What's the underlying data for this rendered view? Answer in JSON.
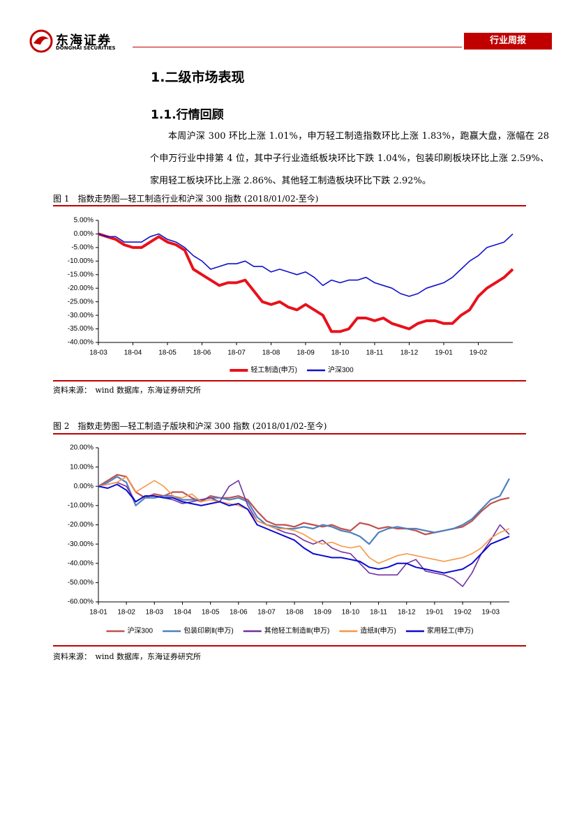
{
  "header": {
    "brand": "东海证券",
    "brand_en": "DONGHAI SECURITIES",
    "tag": "行业周报"
  },
  "heading1": "1.二级市场表现",
  "heading2": "1.1.行情回顾",
  "paragraph": "本周沪深 300 环比上涨 1.01%，申万轻工制造指数环比上涨 1.83%，跑赢大盘，涨幅在 28 个申万行业中排第 4 位，其中子行业造纸板块环比下跌 1.04%，包装印刷板块环比上涨 2.59%、家用轻工板块环比上涨 2.86%、其他轻工制造板块环比下跌 2.92%。",
  "sources": [
    "资料来源：　wind 数据库，东海证券研究所",
    "资料来源：　wind 数据库，东海证券研究所"
  ],
  "chart_data": [
    {
      "type": "line",
      "title": "图 1　指数走势图—轻工制造行业和沪深 300 指数 (2018/01/02-至今)",
      "categories": [
        "18-03",
        null,
        null,
        null,
        "18-04",
        null,
        null,
        null,
        "18-05",
        null,
        null,
        null,
        "18-06",
        null,
        null,
        null,
        "18-07",
        null,
        null,
        null,
        "18-08",
        null,
        null,
        null,
        "18-09",
        null,
        null,
        null,
        "18-10",
        null,
        null,
        null,
        "18-11",
        null,
        null,
        null,
        "18-12",
        null,
        null,
        null,
        "19-01",
        null,
        null,
        null,
        "19-02",
        null,
        null,
        null,
        null
      ],
      "series": [
        {
          "name": "轻工制造(申万)",
          "color": "#e8111b",
          "width": 4,
          "values": [
            0,
            -1,
            -2,
            -4,
            -5,
            -5,
            -3,
            -1,
            -3,
            -4,
            -6,
            -13,
            -15,
            -17,
            -19,
            -18,
            -18,
            -17,
            -21,
            -25,
            -26,
            -25,
            -27,
            -28,
            -26,
            -28,
            -30,
            -36,
            -36,
            -35,
            -31,
            -31,
            -32,
            -31,
            -33,
            -34,
            -35,
            -33,
            -32,
            -32,
            -33,
            -33,
            -30,
            -28,
            -23,
            -20,
            -18,
            -16,
            -13
          ]
        },
        {
          "name": "沪深300",
          "color": "#1010cc",
          "width": 1.6,
          "values": [
            0,
            -1,
            -1,
            -3,
            -3,
            -3,
            -1,
            0,
            -2,
            -3,
            -5,
            -8,
            -10,
            -13,
            -12,
            -11,
            -11,
            -10,
            -12,
            -12,
            -14,
            -13,
            -14,
            -15,
            -14,
            -16,
            -19,
            -17,
            -18,
            -17,
            -17,
            -16,
            -18,
            -19,
            -20,
            -22,
            -23,
            -22,
            -20,
            -19,
            -18,
            -16,
            -13,
            -10,
            -8,
            -5,
            -4,
            -3,
            0
          ]
        }
      ],
      "ylim": [
        -40,
        5
      ],
      "yticks": [
        {
          "value": -40,
          "label": "-40.00%"
        },
        {
          "value": -35,
          "label": "-35.00%"
        },
        {
          "value": -30,
          "label": "-30.00%"
        },
        {
          "value": -25,
          "label": "-25.00%"
        },
        {
          "value": -20,
          "label": "-20.00%"
        },
        {
          "value": -15,
          "label": "-15.00%"
        },
        {
          "value": -10,
          "label": "-10.00%"
        },
        {
          "value": -5,
          "label": "-5.00%"
        },
        {
          "value": 0,
          "label": "0.00%"
        },
        {
          "value": 5,
          "label": "5.00%"
        }
      ],
      "legend": "bottom"
    },
    {
      "type": "line",
      "title": "图 2　指数走势图—轻工制造子版块和沪深 300 指数 (2018/01/02-至今)",
      "categories": [
        "18-01",
        null,
        null,
        "18-02",
        null,
        null,
        "18-03",
        null,
        null,
        "18-04",
        null,
        null,
        "18-05",
        null,
        null,
        "18-06",
        null,
        null,
        "18-07",
        null,
        null,
        "18-08",
        null,
        null,
        "18-09",
        null,
        null,
        "18-10",
        null,
        null,
        "18-11",
        null,
        null,
        "18-12",
        null,
        null,
        "19-01",
        null,
        null,
        "19-02",
        null,
        null,
        "19-03",
        null,
        null
      ],
      "series": [
        {
          "name": "沪深300",
          "color": "#c0504d",
          "width": 2.2,
          "values": [
            0,
            3,
            6,
            5,
            -3,
            -6,
            -4,
            -5,
            -3,
            -3,
            -6,
            -8,
            -5,
            -6,
            -6,
            -5,
            -7,
            -13,
            -18,
            -20,
            -20,
            -21,
            -19,
            -20,
            -21,
            -20,
            -22,
            -23,
            -19,
            -20,
            -22,
            -21,
            -22,
            -22,
            -23,
            -25,
            -24,
            -23,
            -22,
            -21,
            -18,
            -13,
            -9,
            -7,
            -6
          ]
        },
        {
          "name": "包装印刷Ⅱ(申万)",
          "color": "#4f81bd",
          "width": 2.2,
          "values": [
            0,
            2,
            5,
            2,
            -10,
            -6,
            -6,
            -5,
            -5,
            -7,
            -7,
            -7,
            -6,
            -6,
            -7,
            -6,
            -8,
            -16,
            -20,
            -21,
            -22,
            -22,
            -21,
            -22,
            -20,
            -21,
            -23,
            -24,
            -26,
            -30,
            -24,
            -22,
            -21,
            -22,
            -22,
            -23,
            -24,
            -23,
            -22,
            -20,
            -17,
            -12,
            -7,
            -5,
            4
          ]
        },
        {
          "name": "其他轻工制造Ⅲ(申万)",
          "color": "#7030a0",
          "width": 1.6,
          "values": [
            0,
            1,
            2,
            0,
            -8,
            -5,
            -5,
            -6,
            -7,
            -9,
            -8,
            -7,
            -6,
            -8,
            0,
            3,
            -10,
            -18,
            -20,
            -22,
            -24,
            -25,
            -28,
            -30,
            -28,
            -32,
            -34,
            -35,
            -40,
            -45,
            -46,
            -46,
            -46,
            -40,
            -38,
            -44,
            -45,
            -46,
            -48,
            -52,
            -45,
            -35,
            -28,
            -20,
            -25
          ]
        },
        {
          "name": "造纸Ⅱ(申万)",
          "color": "#f79646",
          "width": 1.6,
          "values": [
            0,
            1,
            2,
            5,
            -3,
            0,
            3,
            0,
            -5,
            -6,
            -4,
            -8,
            -7,
            -8,
            -9,
            -10,
            -12,
            -18,
            -20,
            -22,
            -22,
            -23,
            -25,
            -28,
            -30,
            -29,
            -31,
            -32,
            -31,
            -37,
            -40,
            -38,
            -36,
            -35,
            -36,
            -37,
            -38,
            -39,
            -38,
            -37,
            -35,
            -32,
            -27,
            -24,
            -22
          ]
        },
        {
          "name": "家用轻工(申万)",
          "color": "#0a0ad0",
          "width": 2,
          "values": [
            0,
            -1,
            1,
            -2,
            -8,
            -5,
            -5,
            -6,
            -6,
            -8,
            -9,
            -10,
            -9,
            -8,
            -10,
            -9,
            -12,
            -20,
            -22,
            -24,
            -26,
            -28,
            -32,
            -35,
            -36,
            -37,
            -37,
            -38,
            -39,
            -42,
            -43,
            -42,
            -40,
            -40,
            -42,
            -43,
            -44,
            -45,
            -44,
            -43,
            -40,
            -35,
            -30,
            -28,
            -26
          ]
        }
      ],
      "ylim": [
        -60,
        20
      ],
      "yticks": [
        {
          "value": -60,
          "label": "-60.00%"
        },
        {
          "value": -50,
          "label": "-50.00%"
        },
        {
          "value": -40,
          "label": "-40.00%"
        },
        {
          "value": -30,
          "label": "-30.00%"
        },
        {
          "value": -20,
          "label": "-20.00%"
        },
        {
          "value": -10,
          "label": "-10.00%"
        },
        {
          "value": 0,
          "label": "0.00%"
        },
        {
          "value": 10,
          "label": "10.00%"
        },
        {
          "value": 20,
          "label": "20.00%"
        }
      ],
      "legend": "bottom"
    }
  ]
}
